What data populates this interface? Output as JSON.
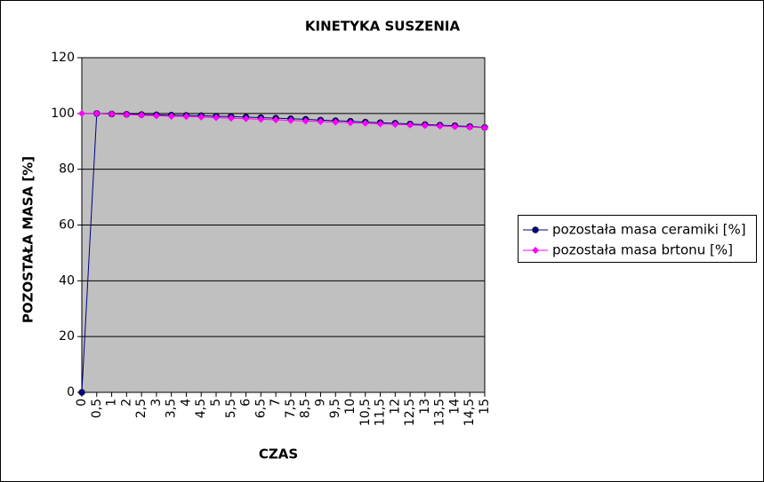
{
  "chart_data": {
    "type": "line",
    "title": "KINETYKA SUSZENIA",
    "x_label": "CZAS",
    "y_label": "POZOSTAŁA MASA [%]",
    "categories": [
      "0",
      "0,5",
      "1",
      "2",
      "2,5",
      "3",
      "3,5",
      "4",
      "4,5",
      "5",
      "5,5",
      "6",
      "6,5",
      "7",
      "7,5",
      "8,5",
      "9",
      "9,5",
      "10",
      "10,5",
      "11,5",
      "12",
      "12,5",
      "13",
      "13,5",
      "14",
      "14,5",
      "15"
    ],
    "series": [
      {
        "name": "pozostała masa ceramiki [%]",
        "color": "#000080",
        "marker": "circle",
        "values": [
          0,
          100,
          99.8,
          99.7,
          99.6,
          99.5,
          99.4,
          99.3,
          99.2,
          99.0,
          98.9,
          98.7,
          98.5,
          98.3,
          98.1,
          97.9,
          97.6,
          97.4,
          97.2,
          96.9,
          96.7,
          96.5,
          96.2,
          96.0,
          95.8,
          95.6,
          95.3,
          95.0
        ]
      },
      {
        "name": "pozostała masa brtonu [%]",
        "color": "#ff00ff",
        "marker": "diamond",
        "values": [
          100,
          100,
          99.8,
          99.6,
          99.4,
          99.2,
          99.0,
          98.9,
          98.7,
          98.5,
          98.3,
          98.1,
          97.9,
          97.7,
          97.5,
          97.3,
          97.1,
          96.9,
          96.7,
          96.5,
          96.3,
          96.1,
          95.9,
          95.7,
          95.5,
          95.3,
          95.1,
          94.9
        ]
      }
    ],
    "ylim": [
      0,
      120
    ],
    "yticks": [
      0,
      20,
      40,
      60,
      80,
      100,
      120
    ],
    "grid": true,
    "legend": "right"
  }
}
